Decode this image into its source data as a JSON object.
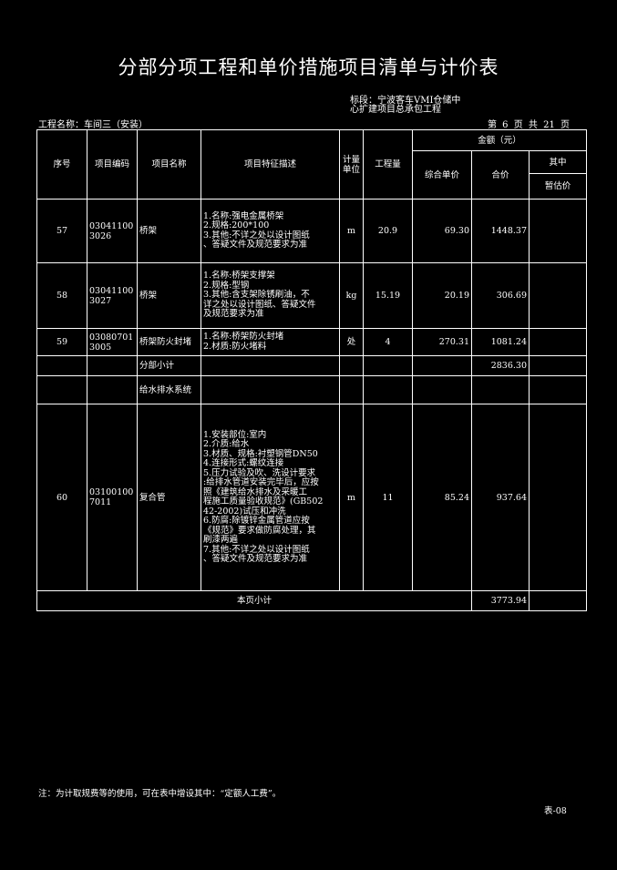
{
  "title": "分部分项工程和单价措施项目清单与计价表",
  "project_name": "工程名称：车间三（安装）",
  "section": "标段：宁波客车VMI仓储中心扩建项目总承包工程",
  "page_info": "第 6 页  共 21 页",
  "headers": {
    "seq": "序号",
    "code": "项目编码",
    "name": "项目名称",
    "desc": "项目特征描述",
    "unit": "计量单位",
    "qty": "工程量",
    "amount": "金额（元）",
    "unit_price": "综合单价",
    "total": "合价",
    "of_which": "其中",
    "provisional": "暂估价"
  },
  "rows": [
    {
      "seq": "57",
      "code": "030411003026",
      "name": "桥架",
      "desc": [
        "1.名称:强电金属桥架",
        "2.规格:200*100",
        "3.其他:不详之处以设计图纸",
        "、答疑文件及规范要求为准"
      ],
      "unit": "m",
      "qty": "20.9",
      "unit_price": "69.30",
      "total": "1448.37",
      "provisional": ""
    },
    {
      "seq": "58",
      "code": "030411003027",
      "name": "桥架",
      "desc": [
        "1.名称:桥架支撑架",
        "2.规格:型钢",
        "3.其他:含支架除锈刷油，不",
        "详之处以设计图纸、答疑文件",
        "及规范要求为准"
      ],
      "unit": "kg",
      "qty": "15.19",
      "unit_price": "20.19",
      "total": "306.69",
      "provisional": ""
    },
    {
      "seq": "59",
      "code": "030807013005",
      "name": "桥架防火封堵",
      "desc": [
        "1.名称:桥架防火封堵",
        "2.材质:防火堵料"
      ],
      "unit": "处",
      "qty": "4",
      "unit_price": "270.31",
      "total": "1081.24",
      "provisional": ""
    }
  ],
  "subtotal_label": "分部小计",
  "subtotal_total": "2836.30",
  "group_label": "给水排水系统",
  "row60": {
    "seq": "60",
    "code": "031001007011",
    "name": "复合管",
    "desc": [
      "1.安装部位:室内",
      "2.介质:给水",
      "3.材质、规格:衬塑钢管DN50",
      "4.连接形式:螺纹连接",
      "5.压力试验及吹、洗设计要求",
      ":给排水管道安装完毕后，应按",
      "照《建筑给水排水及采暖工",
      "程施工质量验收规范》(GB502",
      "42-2002)试压和冲洗",
      "6.防腐:除镀锌金属管道应按",
      "《规范》要求做防腐处理，其",
      "刷漆两遍",
      "7.其他:不详之处以设计图纸",
      "、答疑文件及规范要求为准"
    ],
    "unit": "m",
    "qty": "11",
    "unit_price": "85.24",
    "total": "937.64",
    "provisional": ""
  },
  "page_total_label": "本页小计",
  "page_total": "3773.94",
  "note": "注：为计取规费等的使用，可在表中增设其中：“定额人工费”。",
  "form_no": "表-08"
}
